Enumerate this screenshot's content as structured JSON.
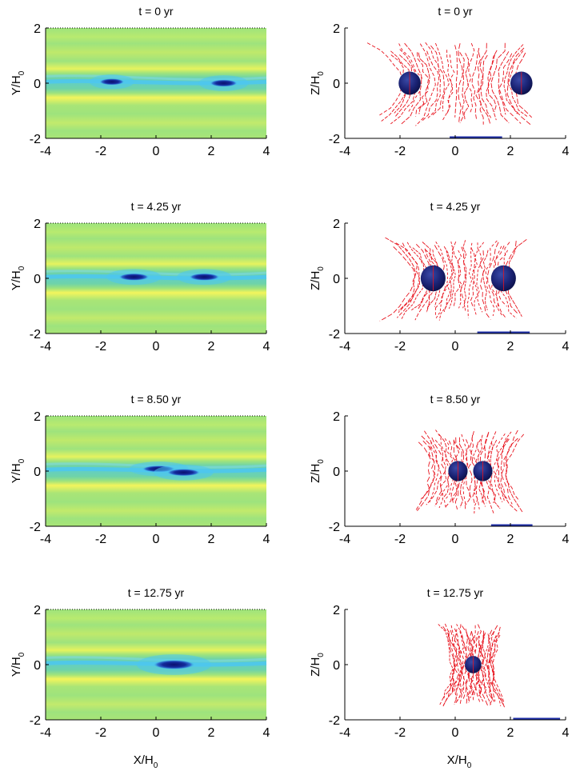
{
  "figure": {
    "xlabel_left": "X/H",
    "xlabel_right": "X/H",
    "label_subscript": "0"
  },
  "chart_data": [
    {
      "panel": "density-xy",
      "type": "heatmap",
      "title": "t = 0 yr",
      "xlabel": "X/H",
      "ylabel": "Y/H",
      "label_subscript": "0",
      "xlim": [
        -4,
        4
      ],
      "ylim": [
        -2,
        2
      ],
      "xticks": [
        "-4",
        "-2",
        "0",
        "2",
        "4"
      ],
      "yticks": [
        "-2",
        "0",
        "2"
      ],
      "cores": [
        {
          "x": -1.6,
          "y": 0.05,
          "semi_x": 0.45,
          "semi_y": 0.12
        },
        {
          "x": 2.45,
          "y": 0.0,
          "semi_x": 0.5,
          "semi_y": 0.13
        }
      ],
      "colors": {
        "background": "#9ee37d",
        "yellow": "#f3f55c",
        "cyan": "#4cc7f0",
        "core": "#0e1b7e"
      }
    },
    {
      "panel": "fieldlines-xz",
      "type": "scatter",
      "title": "t = 0 yr",
      "xlabel": "X/H",
      "ylabel": "Z/H",
      "label_subscript": "0",
      "xlim": [
        -4,
        4
      ],
      "ylim": [
        -2,
        2
      ],
      "xticks": [
        "-4",
        "-2",
        "0",
        "2",
        "4"
      ],
      "yticks": [
        "-2",
        "0",
        "2"
      ],
      "cores": [
        {
          "x": -1.65,
          "z": 0.0,
          "r": 0.4
        },
        {
          "x": 2.4,
          "z": 0.0,
          "r": 0.4
        }
      ],
      "field_extent": [
        -3.2,
        3.2
      ],
      "scale_bar": [
        -0.2,
        1.7
      ],
      "line_color": "#e8141e",
      "core_color": "#1a1f6e"
    },
    {
      "panel": "density-xy",
      "type": "heatmap",
      "title": "t = 4.25 yr",
      "xlabel": "X/H",
      "ylabel": "Y/H",
      "label_subscript": "0",
      "xlim": [
        -4,
        4
      ],
      "ylim": [
        -2,
        2
      ],
      "xticks": [
        "-4",
        "-2",
        "0",
        "2",
        "4"
      ],
      "yticks": [
        "-2",
        "0",
        "2"
      ],
      "cores": [
        {
          "x": -0.8,
          "y": 0.05,
          "semi_x": 0.55,
          "semi_y": 0.13
        },
        {
          "x": 1.75,
          "y": 0.05,
          "semi_x": 0.55,
          "semi_y": 0.13
        }
      ],
      "colors": {
        "background": "#9ee37d",
        "yellow": "#f3f55c",
        "cyan": "#4cc7f0",
        "core": "#0e1b7e"
      }
    },
    {
      "panel": "fieldlines-xz",
      "type": "scatter",
      "title": "t = 4.25 yr",
      "xlabel": "X/H",
      "ylabel": "Z/H",
      "label_subscript": "0",
      "xlim": [
        -4,
        4
      ],
      "ylim": [
        -2,
        2
      ],
      "xticks": [
        "-4",
        "-2",
        "0",
        "2",
        "4"
      ],
      "yticks": [
        "-2",
        "0",
        "2"
      ],
      "cores": [
        {
          "x": -0.8,
          "z": 0.0,
          "r": 0.45
        },
        {
          "x": 1.75,
          "z": 0.0,
          "r": 0.45
        }
      ],
      "field_extent": [
        -2.7,
        2.7
      ],
      "scale_bar": [
        0.8,
        2.7
      ],
      "line_color": "#e8141e",
      "core_color": "#1a1f6e"
    },
    {
      "panel": "density-xy",
      "type": "heatmap",
      "title": "t = 8.50 yr",
      "xlabel": "X/H",
      "ylabel": "Y/H",
      "label_subscript": "0",
      "xlim": [
        -4,
        4
      ],
      "ylim": [
        -2,
        2
      ],
      "xticks": [
        "-4",
        "-2",
        "0",
        "2",
        "4"
      ],
      "yticks": [
        "-2",
        "0",
        "2"
      ],
      "cores": [
        {
          "x": 0.1,
          "y": 0.08,
          "semi_x": 0.6,
          "semi_y": 0.12
        },
        {
          "x": 1.0,
          "y": -0.05,
          "semi_x": 0.6,
          "semi_y": 0.13
        }
      ],
      "colors": {
        "background": "#9ee37d",
        "yellow": "#f3f55c",
        "cyan": "#4cc7f0",
        "core": "#0e1b7e"
      }
    },
    {
      "panel": "fieldlines-xz",
      "type": "scatter",
      "title": "t = 8.50 yr",
      "xlabel": "X/H",
      "ylabel": "Z/H",
      "label_subscript": "0",
      "xlim": [
        -4,
        4
      ],
      "ylim": [
        -2,
        2
      ],
      "xticks": [
        "-4",
        "-2",
        "0",
        "2",
        "4"
      ],
      "yticks": [
        "-2",
        "0",
        "2"
      ],
      "cores": [
        {
          "x": 0.1,
          "z": 0.0,
          "r": 0.35
        },
        {
          "x": 1.0,
          "z": 0.0,
          "r": 0.35
        }
      ],
      "field_extent": [
        -1.7,
        2.7
      ],
      "scale_bar": [
        1.3,
        2.8
      ],
      "line_color": "#e8141e",
      "core_color": "#1a1f6e"
    },
    {
      "panel": "density-xy",
      "type": "heatmap",
      "title": "t = 12.75 yr",
      "xlabel": "X/H",
      "ylabel": "Y/H",
      "label_subscript": "0",
      "xlim": [
        -4,
        4
      ],
      "ylim": [
        -2,
        2
      ],
      "xticks": [
        "-4",
        "-2",
        "0",
        "2",
        "4"
      ],
      "yticks": [
        "-2",
        "0",
        "2"
      ],
      "cores": [
        {
          "x": 0.65,
          "y": 0.0,
          "semi_x": 0.75,
          "semi_y": 0.17
        }
      ],
      "colors": {
        "background": "#9ee37d",
        "yellow": "#f3f55c",
        "cyan": "#4cc7f0",
        "core": "#0e1b7e"
      }
    },
    {
      "panel": "fieldlines-xz",
      "type": "scatter",
      "title": "t = 12.75 yr",
      "xlabel": "X/H",
      "ylabel": "Z/H",
      "label_subscript": "0",
      "xlim": [
        -4,
        4
      ],
      "ylim": [
        -2,
        2
      ],
      "xticks": [
        "-4",
        "-2",
        "0",
        "2",
        "4"
      ],
      "yticks": [
        "-2",
        "0",
        "2"
      ],
      "cores": [
        {
          "x": 0.65,
          "z": 0.0,
          "r": 0.3
        }
      ],
      "field_extent": [
        -0.6,
        1.9
      ],
      "scale_bar": [
        2.1,
        3.8
      ],
      "line_color": "#e8141e",
      "core_color": "#1a1f6e"
    }
  ]
}
